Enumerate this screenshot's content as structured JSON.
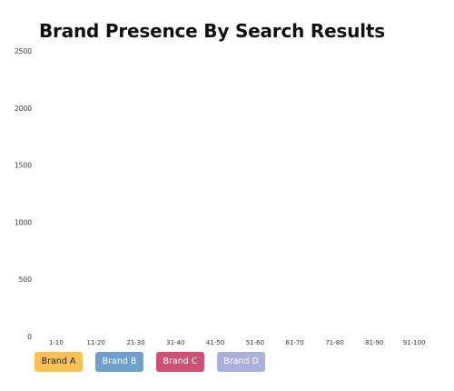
{
  "title": "Brand Presence By Search Results",
  "chart_data": {
    "type": "bar",
    "title": "Brand Presence By Search Results",
    "xlabel": "",
    "ylabel": "",
    "categories": [
      "1-10",
      "11-20",
      "21-30",
      "31-40",
      "41-50",
      "51-60",
      "61-70",
      "71-80",
      "81-90",
      "91-100"
    ],
    "ylim": [
      0,
      2500
    ],
    "yticks": [
      0,
      500,
      1000,
      1500,
      2000,
      2500
    ],
    "grid": false,
    "legend_placement": "bottom-left",
    "series": [
      {
        "name": "Brand A",
        "color": "#f7c15a",
        "values": [
          0,
          0,
          0,
          0,
          0,
          0,
          0,
          0,
          0,
          0
        ]
      },
      {
        "name": "Brand B",
        "color": "#6fa0cc",
        "values": [
          0,
          0,
          0,
          0,
          0,
          0,
          0,
          0,
          0,
          0
        ]
      },
      {
        "name": "Brand C",
        "color": "#cf5075",
        "values": [
          0,
          0,
          0,
          0,
          0,
          0,
          0,
          0,
          0,
          0
        ]
      },
      {
        "name": "Brand D",
        "color": "#aab0da",
        "values": [
          0,
          0,
          0,
          0,
          0,
          0,
          0,
          0,
          0,
          0
        ]
      }
    ]
  },
  "legend": {
    "items": [
      {
        "label": "Brand A",
        "bg": "#f7c15a",
        "fg": "#1f1f1f"
      },
      {
        "label": "Brand B",
        "bg": "#6fa0cc",
        "fg": "#ffffff"
      },
      {
        "label": "Brand C",
        "bg": "#cf5075",
        "fg": "#ffffff"
      },
      {
        "label": "Brand D",
        "bg": "#aab0da",
        "fg": "#ffffff"
      }
    ]
  }
}
